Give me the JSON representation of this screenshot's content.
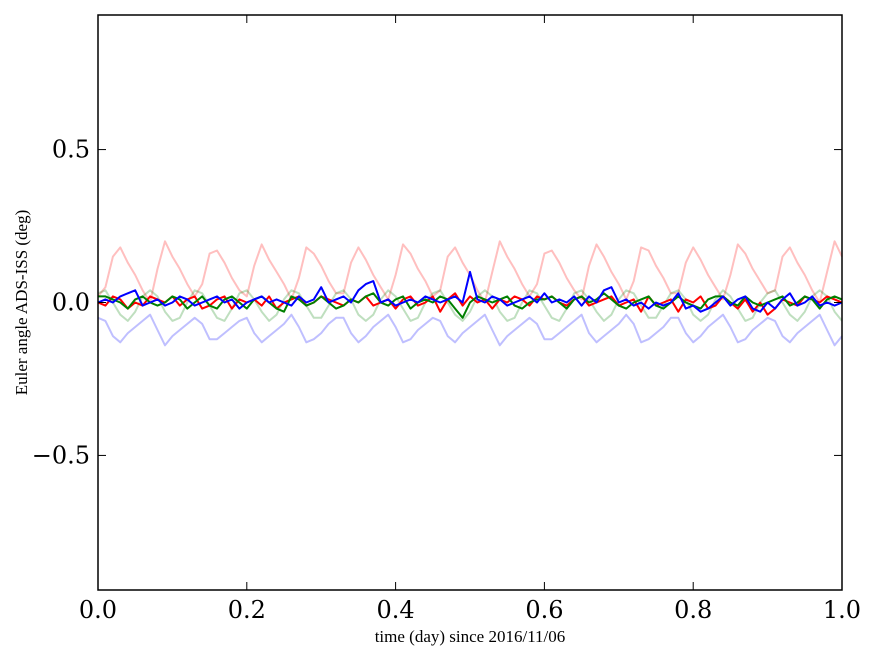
{
  "chart_data": {
    "type": "line",
    "title": "",
    "xlabel": "time (day) since 2016/11/06",
    "ylabel": "Euler angle ADS-ISS (deg)",
    "xlim": [
      0.0,
      1.0
    ],
    "ylim": [
      -0.94,
      0.94
    ],
    "grid": false,
    "legend": "none",
    "xticks": [
      0.0,
      0.2,
      0.4,
      0.6,
      0.8,
      1.0
    ],
    "xtick_labels": [
      "0.0",
      "0.2",
      "0.4",
      "0.6",
      "0.8",
      "1.0"
    ],
    "yticks": [
      -0.5,
      0.0,
      0.5
    ],
    "ytick_labels": [
      "−0.5",
      "0.0",
      "0.5"
    ],
    "x": [
      0,
      0.01,
      0.02,
      0.03,
      0.04,
      0.05,
      0.06,
      0.07,
      0.08,
      0.09,
      0.1,
      0.11,
      0.12,
      0.13,
      0.14,
      0.15,
      0.16,
      0.17,
      0.18,
      0.19,
      0.2,
      0.21,
      0.22,
      0.23,
      0.24,
      0.25,
      0.26,
      0.27,
      0.28,
      0.29,
      0.3,
      0.31,
      0.32,
      0.33,
      0.34,
      0.35,
      0.36,
      0.37,
      0.38,
      0.39,
      0.4,
      0.41,
      0.42,
      0.43,
      0.44,
      0.45,
      0.46,
      0.47,
      0.48,
      0.49,
      0.5,
      0.51,
      0.52,
      0.53,
      0.54,
      0.55,
      0.56,
      0.57,
      0.58,
      0.59,
      0.6,
      0.61,
      0.62,
      0.63,
      0.64,
      0.65,
      0.66,
      0.67,
      0.68,
      0.69,
      0.7,
      0.71,
      0.72,
      0.73,
      0.74,
      0.75,
      0.76,
      0.77,
      0.78,
      0.79,
      0.8,
      0.81,
      0.82,
      0.83,
      0.84,
      0.85,
      0.86,
      0.87,
      0.88,
      0.89,
      0.9,
      0.91,
      0.92,
      0.93,
      0.94,
      0.95,
      0.96,
      0.97,
      0.98,
      0.99,
      1.0
    ],
    "series": [
      {
        "color": "#ff0000",
        "alpha": 0.25,
        "values": [
          0.02,
          0.05,
          0.15,
          0.18,
          0.13,
          0.09,
          0.04,
          0.0,
          0.11,
          0.2,
          0.15,
          0.11,
          0.06,
          0.02,
          0.06,
          0.16,
          0.17,
          0.13,
          0.08,
          0.04,
          0.02,
          0.12,
          0.19,
          0.14,
          0.1,
          0.06,
          0.01,
          0.08,
          0.18,
          0.16,
          0.12,
          0.07,
          0.03,
          0.03,
          0.13,
          0.18,
          0.14,
          0.09,
          0.05,
          0.01,
          0.09,
          0.19,
          0.16,
          0.11,
          0.07,
          0.02,
          0.04,
          0.15,
          0.18,
          0.13,
          0.09,
          0.04,
          0.0,
          0.1,
          0.2,
          0.15,
          0.11,
          0.06,
          0.02,
          0.06,
          0.16,
          0.17,
          0.13,
          0.08,
          0.04,
          0.01,
          0.12,
          0.19,
          0.15,
          0.1,
          0.06,
          0.01,
          0.07,
          0.18,
          0.17,
          0.12,
          0.08,
          0.03,
          0.03,
          0.13,
          0.18,
          0.14,
          0.09,
          0.05,
          0.01,
          0.09,
          0.19,
          0.16,
          0.11,
          0.07,
          0.03,
          0.04,
          0.15,
          0.18,
          0.13,
          0.09,
          0.04,
          0.0,
          0.1,
          0.2,
          0.15
        ]
      },
      {
        "color": "#008000",
        "alpha": 0.25,
        "values": [
          0.03,
          0.04,
          0.0,
          -0.04,
          -0.06,
          -0.03,
          0.02,
          0.04,
          0.02,
          -0.03,
          -0.06,
          -0.05,
          0.0,
          0.04,
          0.03,
          -0.01,
          -0.05,
          -0.06,
          -0.02,
          0.03,
          0.04,
          0.01,
          -0.03,
          -0.06,
          -0.04,
          0.01,
          0.04,
          0.03,
          -0.01,
          -0.05,
          -0.05,
          -0.01,
          0.03,
          0.04,
          0.01,
          -0.04,
          -0.06,
          -0.04,
          0.01,
          0.04,
          0.02,
          -0.02,
          -0.06,
          -0.05,
          0.0,
          0.03,
          0.04,
          0.0,
          -0.04,
          -0.06,
          -0.03,
          0.02,
          0.04,
          0.02,
          -0.03,
          -0.06,
          -0.05,
          0.0,
          0.04,
          0.03,
          -0.01,
          -0.05,
          -0.06,
          -0.02,
          0.03,
          0.04,
          0.01,
          -0.03,
          -0.06,
          -0.04,
          0.01,
          0.04,
          0.03,
          -0.01,
          -0.05,
          -0.05,
          -0.01,
          0.03,
          0.04,
          0.01,
          -0.04,
          -0.06,
          -0.04,
          0.01,
          0.04,
          0.02,
          -0.02,
          -0.06,
          -0.05,
          0.0,
          0.03,
          0.04,
          0.0,
          -0.04,
          -0.06,
          -0.03,
          0.02,
          0.04,
          0.02,
          -0.03,
          -0.06
        ]
      },
      {
        "color": "#0000ff",
        "alpha": 0.25,
        "values": [
          -0.05,
          -0.06,
          -0.11,
          -0.13,
          -0.1,
          -0.08,
          -0.06,
          -0.04,
          -0.09,
          -0.14,
          -0.11,
          -0.09,
          -0.07,
          -0.05,
          -0.07,
          -0.12,
          -0.12,
          -0.1,
          -0.08,
          -0.06,
          -0.05,
          -0.1,
          -0.13,
          -0.11,
          -0.09,
          -0.07,
          -0.04,
          -0.08,
          -0.13,
          -0.12,
          -0.1,
          -0.07,
          -0.05,
          -0.05,
          -0.1,
          -0.13,
          -0.11,
          -0.08,
          -0.06,
          -0.04,
          -0.08,
          -0.13,
          -0.12,
          -0.09,
          -0.07,
          -0.05,
          -0.06,
          -0.11,
          -0.13,
          -0.1,
          -0.08,
          -0.06,
          -0.04,
          -0.09,
          -0.14,
          -0.11,
          -0.09,
          -0.07,
          -0.05,
          -0.07,
          -0.12,
          -0.12,
          -0.1,
          -0.08,
          -0.06,
          -0.04,
          -0.1,
          -0.13,
          -0.11,
          -0.09,
          -0.07,
          -0.04,
          -0.07,
          -0.13,
          -0.12,
          -0.1,
          -0.08,
          -0.05,
          -0.05,
          -0.1,
          -0.13,
          -0.11,
          -0.08,
          -0.06,
          -0.04,
          -0.08,
          -0.13,
          -0.12,
          -0.09,
          -0.07,
          -0.05,
          -0.06,
          -0.11,
          -0.13,
          -0.1,
          -0.08,
          -0.06,
          -0.04,
          -0.09,
          -0.14,
          -0.11
        ]
      },
      {
        "color": "#ff0000",
        "alpha": 1,
        "values": [
          0.0,
          -0.01,
          0.02,
          0.01,
          -0.02,
          0.0,
          -0.01,
          0.02,
          0.01,
          0.0,
          0.02,
          -0.01,
          0.01,
          0.02,
          -0.02,
          -0.01,
          0.01,
          0.02,
          -0.02,
          0.01,
          0.0,
          0.01,
          -0.01,
          0.02,
          -0.02,
          0.0,
          0.01,
          0.02,
          -0.01,
          0.0,
          0.02,
          0.01,
          0.0,
          -0.01,
          0.01,
          0.0,
          0.02,
          -0.01,
          0.0,
          0.01,
          -0.02,
          0.01,
          0.02,
          -0.01,
          0.0,
          0.02,
          -0.03,
          0.01,
          0.03,
          -0.01,
          0.02,
          0.0,
          0.01,
          -0.02,
          0.01,
          0.0,
          0.02,
          0.01,
          -0.01,
          0.02,
          0.01,
          0.02,
          0.0,
          -0.01,
          0.01,
          0.02,
          -0.01,
          0.0,
          0.01,
          0.02,
          -0.01,
          0.0,
          0.01,
          -0.03,
          0.02,
          -0.01,
          0.0,
          0.01,
          -0.03,
          0.01,
          0.0,
          0.02,
          -0.02,
          -0.01,
          0.02,
          0.0,
          -0.02,
          0.01,
          -0.03,
          0.0,
          -0.04,
          -0.02,
          0.01,
          0.0,
          -0.01,
          0.02,
          0.01,
          0.0,
          0.02,
          0.01,
          0.0
        ]
      },
      {
        "color": "#008000",
        "alpha": 1,
        "values": [
          0.02,
          0.02,
          0.01,
          0.0,
          -0.02,
          0.01,
          0.02,
          0.0,
          -0.01,
          0.0,
          0.02,
          0.01,
          -0.02,
          0.0,
          0.02,
          -0.01,
          -0.02,
          0.01,
          0.02,
          0.0,
          -0.02,
          0.01,
          0.02,
          0.0,
          -0.02,
          -0.03,
          0.02,
          0.01,
          -0.01,
          0.0,
          0.02,
          0.0,
          -0.02,
          -0.01,
          0.01,
          0.0,
          0.02,
          0.03,
          0.0,
          -0.01,
          0.01,
          0.02,
          -0.02,
          0.0,
          0.01,
          0.0,
          0.02,
          0.01,
          -0.02,
          -0.05,
          0.0,
          0.02,
          0.01,
          0.0,
          0.01,
          0.02,
          -0.01,
          -0.02,
          0.0,
          0.01,
          0.01,
          0.02,
          0.0,
          -0.02,
          0.01,
          0.02,
          0.0,
          0.01,
          0.03,
          0.01,
          -0.01,
          -0.02,
          0.0,
          0.01,
          0.02,
          -0.01,
          -0.02,
          0.0,
          0.02,
          0.0,
          -0.01,
          -0.02,
          0.01,
          0.02,
          0.02,
          0.0,
          -0.01,
          0.02,
          0.0,
          -0.01,
          0.0,
          0.01,
          0.02,
          -0.01,
          0.0,
          0.02,
          0.01,
          -0.02,
          0.01,
          0.02,
          0.01
        ]
      },
      {
        "color": "#0000ff",
        "alpha": 1,
        "values": [
          0.0,
          0.01,
          0.0,
          0.02,
          0.03,
          0.04,
          -0.01,
          0.0,
          0.01,
          -0.01,
          0.0,
          0.02,
          0.01,
          -0.01,
          0.0,
          0.01,
          0.02,
          0.0,
          0.01,
          -0.02,
          0.0,
          0.01,
          0.02,
          0.0,
          0.01,
          0.0,
          -0.01,
          0.02,
          0.0,
          0.01,
          0.05,
          0.0,
          0.01,
          0.02,
          0.0,
          0.04,
          0.06,
          0.07,
          0.0,
          0.01,
          -0.01,
          0.0,
          0.01,
          0.0,
          0.02,
          0.01,
          0.0,
          0.01,
          0.02,
          0.0,
          0.1,
          0.01,
          0.0,
          0.02,
          0.01,
          -0.01,
          0.0,
          0.01,
          0.02,
          0.0,
          0.03,
          0.0,
          0.01,
          0.0,
          0.02,
          -0.01,
          0.02,
          0.0,
          0.04,
          0.05,
          0.0,
          0.01,
          -0.01,
          0.0,
          -0.02,
          0.0,
          -0.01,
          0.0,
          0.03,
          -0.02,
          -0.01,
          -0.03,
          -0.02,
          0.0,
          0.02,
          -0.01,
          0.01,
          0.02,
          -0.02,
          -0.03,
          0.0,
          -0.02,
          0.01,
          0.03,
          -0.01,
          0.0,
          0.02,
          -0.01,
          0.0,
          -0.01,
          0.0
        ]
      }
    ]
  }
}
